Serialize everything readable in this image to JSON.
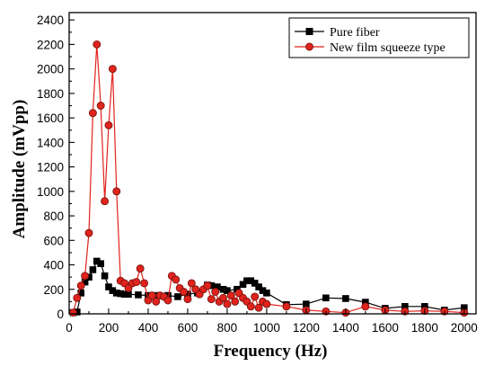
{
  "chart_data": {
    "type": "line",
    "title": "",
    "xlabel": "Frequency (Hz)",
    "ylabel": "Amplitude (mVpp)",
    "xlim": [
      0,
      2060
    ],
    "ylim": [
      0,
      2460
    ],
    "xticks": [
      0,
      200,
      400,
      600,
      800,
      1000,
      1200,
      1400,
      1600,
      1800,
      2000
    ],
    "yticks": [
      0,
      200,
      400,
      600,
      800,
      1000,
      1200,
      1400,
      1600,
      1800,
      2000,
      2200,
      2400
    ],
    "grid": false,
    "legend_position": "top-right",
    "series": [
      {
        "name": "Pure fiber",
        "color": "#000000",
        "marker": "square",
        "marker_fill": "#000000",
        "marker_edge": "#000000",
        "x": [
          20,
          40,
          60,
          80,
          100,
          120,
          140,
          160,
          180,
          200,
          220,
          240,
          260,
          280,
          300,
          350,
          400,
          450,
          500,
          550,
          600,
          650,
          700,
          720,
          750,
          780,
          800,
          850,
          880,
          900,
          920,
          940,
          960,
          980,
          1000,
          1100,
          1200,
          1300,
          1400,
          1500,
          1600,
          1700,
          1800,
          1900,
          2000
        ],
        "y": [
          10,
          15,
          170,
          260,
          300,
          360,
          430,
          410,
          310,
          220,
          190,
          170,
          165,
          160,
          160,
          155,
          150,
          150,
          150,
          140,
          160,
          170,
          235,
          230,
          220,
          200,
          190,
          200,
          240,
          270,
          270,
          250,
          220,
          190,
          170,
          75,
          80,
          130,
          125,
          95,
          45,
          60,
          60,
          30,
          50
        ]
      },
      {
        "name": "New film squeeze type",
        "color": "#e0231c",
        "marker": "circle",
        "marker_fill": "#e0231c",
        "marker_edge": "#7a1410",
        "x": [
          20,
          40,
          60,
          80,
          100,
          120,
          140,
          160,
          180,
          200,
          220,
          240,
          260,
          280,
          300,
          320,
          340,
          360,
          380,
          400,
          420,
          440,
          460,
          480,
          500,
          520,
          540,
          560,
          580,
          600,
          620,
          640,
          660,
          680,
          700,
          720,
          740,
          760,
          780,
          800,
          820,
          840,
          860,
          880,
          900,
          920,
          940,
          960,
          980,
          1000,
          1100,
          1200,
          1300,
          1400,
          1500,
          1600,
          1700,
          1800,
          1900,
          2000
        ],
        "y": [
          10,
          130,
          230,
          310,
          660,
          1640,
          2200,
          1700,
          920,
          1540,
          2000,
          1000,
          270,
          250,
          210,
          250,
          260,
          370,
          250,
          110,
          150,
          100,
          150,
          140,
          110,
          310,
          280,
          210,
          180,
          120,
          250,
          200,
          160,
          200,
          230,
          120,
          180,
          100,
          130,
          80,
          150,
          100,
          170,
          130,
          100,
          60,
          140,
          50,
          100,
          80,
          60,
          30,
          20,
          10,
          60,
          30,
          20,
          25,
          20,
          10
        ]
      }
    ]
  }
}
